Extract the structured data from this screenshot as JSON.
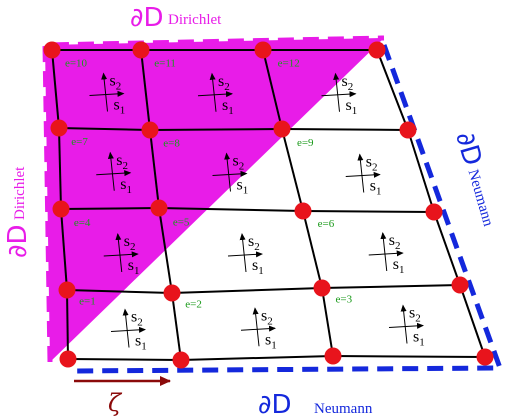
{
  "colors": {
    "grid": "#000000",
    "node": "#e8141c",
    "dirichlet": "#e81ce8",
    "neumann": "#1428dc",
    "element_label": "#1a9a1a",
    "zeta_arrow": "#8b0a0a"
  },
  "boundaries": {
    "top": {
      "symbol": "∂D",
      "word": "Dirichlet"
    },
    "left": {
      "symbol": "∂D",
      "word": "Dirichlet"
    },
    "right": {
      "symbol": "∂D",
      "word": "Neumann"
    },
    "bottom": {
      "symbol": "∂D",
      "word": "Neumann"
    }
  },
  "local_axes": {
    "s1": {
      "main": "s",
      "sub": "1"
    },
    "s2": {
      "main": "s",
      "sub": "2"
    }
  },
  "coordinate_label": "ζ",
  "elements": [
    {
      "id": "e1",
      "label": "e=1"
    },
    {
      "id": "e2",
      "label": "e=2"
    },
    {
      "id": "e3",
      "label": "e=3"
    },
    {
      "id": "e4",
      "label": "e=4"
    },
    {
      "id": "e5",
      "label": "e=5"
    },
    {
      "id": "e6",
      "label": "e=6"
    },
    {
      "id": "e7",
      "label": "e=7"
    },
    {
      "id": "e8",
      "label": "e=8"
    },
    {
      "id": "e9",
      "label": "e=9"
    },
    {
      "id": "e10",
      "label": "e=10"
    },
    {
      "id": "e11",
      "label": "e=11"
    },
    {
      "id": "e12",
      "label": "e=12"
    }
  ]
}
